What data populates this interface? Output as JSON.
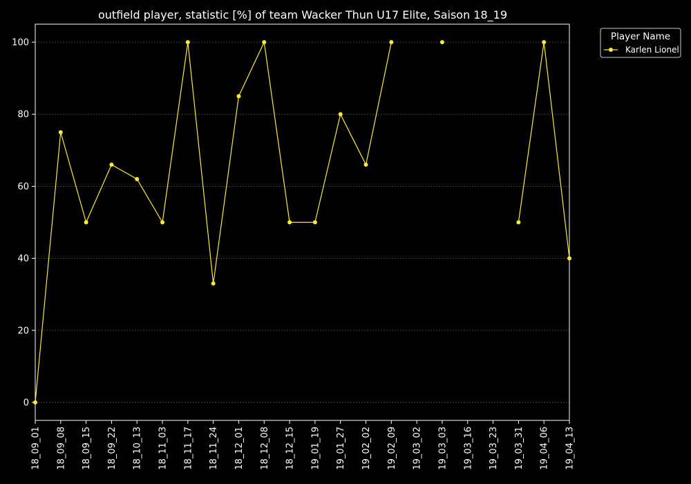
{
  "chart_data": {
    "type": "line",
    "title": "outfield player, statistic [%] of team Wacker Thun U17 Elite, Saison 18_19",
    "xlabel": "",
    "ylabel": "",
    "categories": [
      "18_09_01",
      "18_09_08",
      "18_09_15",
      "18_09_22",
      "18_10_13",
      "18_11_03",
      "18_11_17",
      "18_11_24",
      "18_12_01",
      "18_12_08",
      "18_12_15",
      "19_01_19",
      "19_01_27",
      "19_02_02",
      "19_02_09",
      "19_03_02",
      "19_03_03",
      "19_03_16",
      "19_03_23",
      "19_03_31",
      "19_04_06",
      "19_04_13"
    ],
    "series": [
      {
        "name": "Karlen Lionel",
        "color": "#ffea3c",
        "values": [
          0,
          75,
          50,
          66,
          62,
          50,
          100,
          33,
          85,
          100,
          50,
          50,
          80,
          66,
          100,
          null,
          100,
          null,
          null,
          50,
          100,
          40
        ]
      }
    ],
    "yticks": [
      0,
      20,
      40,
      60,
      80,
      100
    ],
    "ylim": [
      -5,
      105
    ],
    "grid": true,
    "legend": {
      "title": "Player Name",
      "placement": "outside-top-right"
    },
    "colors": {
      "background": "#000000",
      "axis": "#ffffff",
      "grid": "#666666"
    }
  }
}
